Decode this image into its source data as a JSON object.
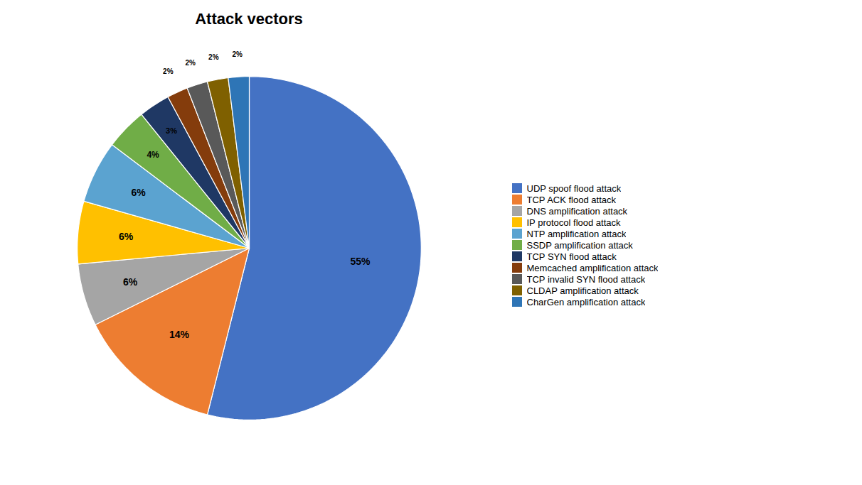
{
  "chart_data": {
    "type": "pie",
    "title": "Attack vectors",
    "categories": [
      "UDP spoof flood attack",
      "TCP ACK flood attack",
      "DNS amplification attack",
      "IP protocol flood attack",
      "NTP amplification attack",
      "SSDP amplification attack",
      "TCP SYN flood attack",
      "Memcached amplification attack",
      "TCP invalid SYN flood attack",
      "CLDAP amplification attack",
      "CharGen amplification attack"
    ],
    "values": [
      55,
      14,
      6,
      6,
      6,
      4,
      3,
      2,
      2,
      2,
      2
    ],
    "value_labels": [
      "55%",
      "14%",
      "6%",
      "6%",
      "6%",
      "4%",
      "3%",
      "2%",
      "2%",
      "2%",
      "2%"
    ],
    "colors": [
      "#4472C4",
      "#ED7D31",
      "#A5A5A5",
      "#FFC000",
      "#5BA3D0",
      "#70AD47",
      "#1F3864",
      "#843C0C",
      "#595959",
      "#7F6000",
      "#2E75B6"
    ],
    "data_labels": true,
    "legend": "right"
  }
}
